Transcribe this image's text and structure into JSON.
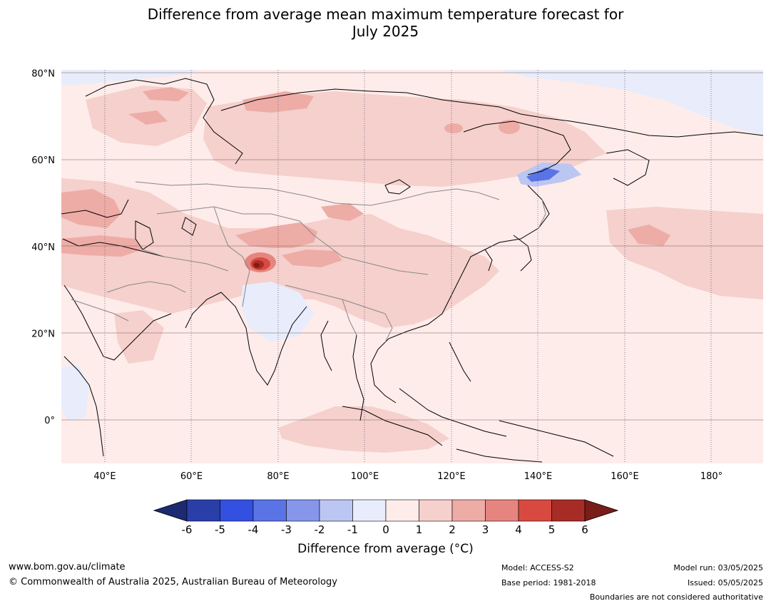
{
  "title_line1": "Difference from average mean maximum temperature forecast for",
  "title_line2": "July 2025",
  "lat_labels": [
    {
      "value": 80,
      "text": "80°N"
    },
    {
      "value": 60,
      "text": "60°N"
    },
    {
      "value": 40,
      "text": "40°N"
    },
    {
      "value": 20,
      "text": "20°N"
    },
    {
      "value": 0,
      "text": "0°"
    }
  ],
  "lon_labels": [
    {
      "value": 40,
      "text": "40°E"
    },
    {
      "value": 60,
      "text": "60°E"
    },
    {
      "value": 80,
      "text": "80°E"
    },
    {
      "value": 100,
      "text": "100°E"
    },
    {
      "value": 120,
      "text": "120°E"
    },
    {
      "value": 140,
      "text": "140°E"
    },
    {
      "value": 160,
      "text": "160°E"
    },
    {
      "value": 180,
      "text": "180°"
    }
  ],
  "colorbar": {
    "title": "Difference from average (°C)",
    "tick_labels": [
      "-6",
      "-5",
      "-4",
      "-3",
      "-2",
      "-1",
      "0",
      "1",
      "2",
      "3",
      "4",
      "5",
      "6"
    ],
    "low_extend_color": "#1c2a72",
    "high_extend_color": "#7a1c18",
    "colors": [
      "#2a3ea8",
      "#3350e0",
      "#5a74e6",
      "#8696ea",
      "#bcc6f2",
      "#e8ecfb",
      "#fdecea",
      "#f5d0cc",
      "#eeaca6",
      "#e68580",
      "#d84a40",
      "#a82c26"
    ]
  },
  "footer": {
    "url": "www.bom.gov.au/climate",
    "copyright": "© Commonwealth of Australia 2025, Australian Bureau of Meteorology",
    "model": "Model: ACCESS-S2",
    "base_period": "Base period: 1981-2018",
    "model_run": "Model run: 03/05/2025",
    "issued": "Issued: 05/05/2025",
    "disclaimer": "Boundaries are not considered authoritative"
  }
}
